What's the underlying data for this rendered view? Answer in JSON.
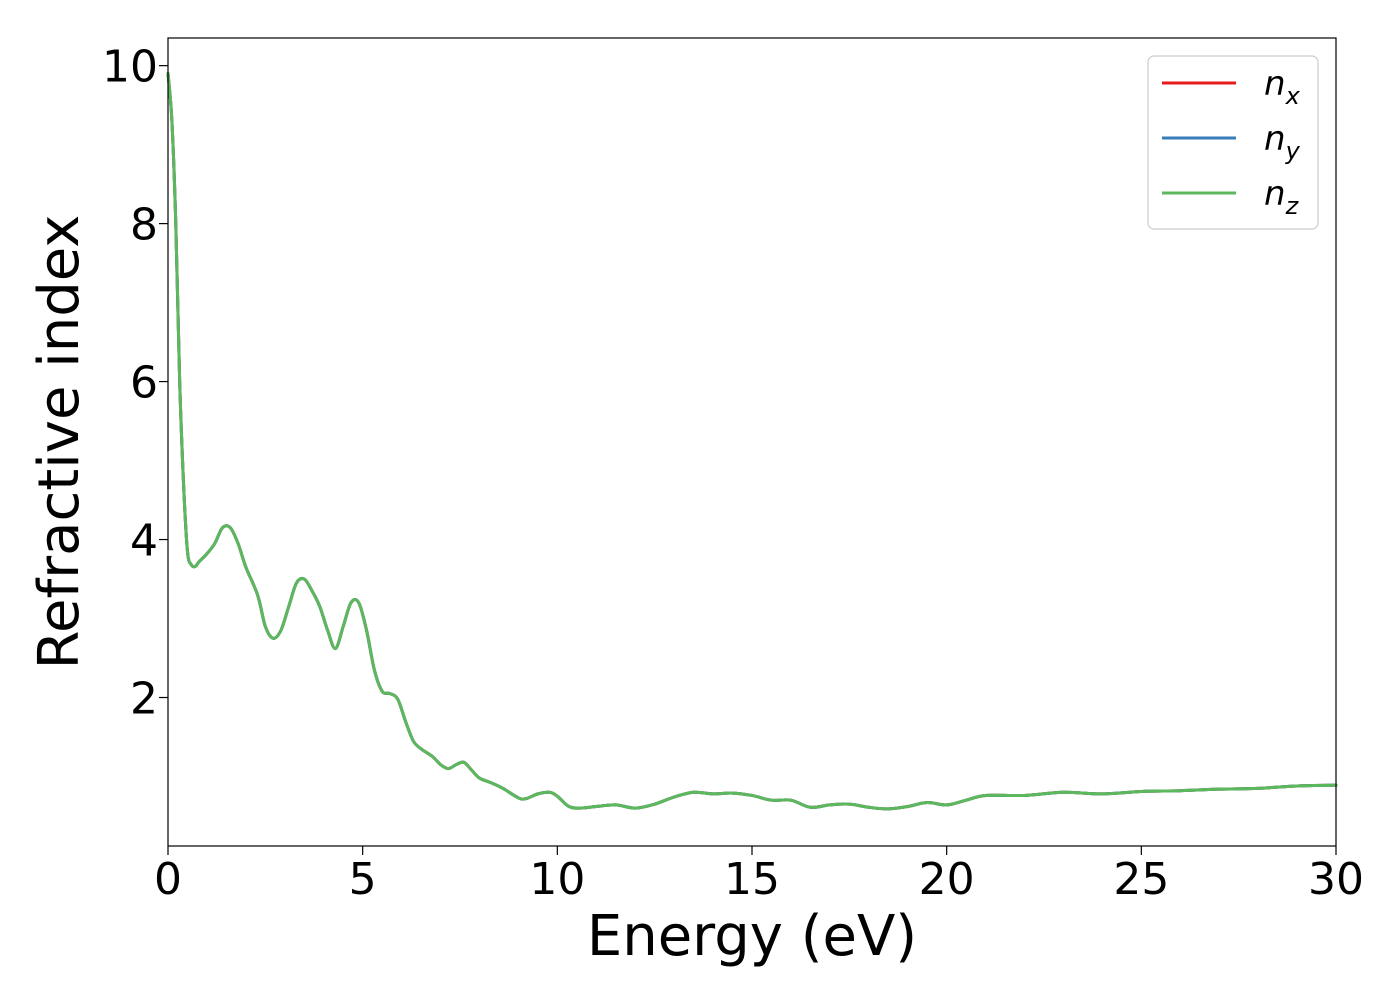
{
  "chart_data": {
    "type": "line",
    "title": "",
    "xlabel": "Energy (eV)",
    "ylabel": "Refractive index",
    "xlim": [
      0,
      30
    ],
    "ylim": [
      0.12,
      10.35
    ],
    "xticks": [
      0,
      5,
      10,
      15,
      20,
      25,
      30
    ],
    "xtick_labels": [
      "0",
      "5",
      "10",
      "15",
      "20",
      "25",
      "30"
    ],
    "yticks": [
      2,
      4,
      6,
      8,
      10
    ],
    "ytick_labels": [
      "2",
      "4",
      "6",
      "8",
      "10"
    ],
    "grid": false,
    "legend_position": "top-right",
    "x": [
      0,
      0.1,
      0.2,
      0.3,
      0.4,
      0.5,
      0.6,
      0.7,
      0.8,
      1.0,
      1.2,
      1.4,
      1.6,
      1.8,
      2.0,
      2.3,
      2.5,
      2.7,
      2.9,
      3.1,
      3.3,
      3.5,
      3.7,
      3.9,
      4.1,
      4.3,
      4.5,
      4.7,
      4.9,
      5.1,
      5.3,
      5.5,
      5.7,
      5.9,
      6.1,
      6.3,
      6.5,
      6.8,
      7.0,
      7.2,
      7.4,
      7.6,
      7.8,
      8.0,
      8.3,
      8.6,
      9.0,
      9.2,
      9.5,
      9.8,
      10.0,
      10.3,
      10.6,
      11.0,
      11.5,
      12.0,
      12.5,
      13.0,
      13.5,
      14.0,
      14.5,
      15.0,
      15.5,
      16.0,
      16.5,
      17.0,
      17.5,
      18.0,
      18.5,
      19.0,
      19.5,
      20.0,
      20.5,
      21.0,
      22.0,
      23.0,
      24.0,
      25.0,
      26.0,
      27.0,
      28.0,
      29.0,
      30.0
    ],
    "series": [
      {
        "name": "n_x",
        "label_base": "n",
        "label_sub": "x",
        "color": "#e41a1c",
        "y": [
          9.9,
          9.3,
          8.0,
          6.0,
          4.7,
          3.85,
          3.68,
          3.66,
          3.72,
          3.82,
          3.95,
          4.15,
          4.15,
          3.95,
          3.65,
          3.3,
          2.9,
          2.75,
          2.85,
          3.15,
          3.45,
          3.5,
          3.35,
          3.15,
          2.85,
          2.62,
          2.9,
          3.2,
          3.2,
          2.85,
          2.35,
          2.08,
          2.05,
          1.98,
          1.7,
          1.45,
          1.35,
          1.25,
          1.15,
          1.1,
          1.15,
          1.18,
          1.08,
          0.98,
          0.92,
          0.85,
          0.73,
          0.72,
          0.78,
          0.8,
          0.75,
          0.62,
          0.6,
          0.62,
          0.64,
          0.6,
          0.65,
          0.74,
          0.8,
          0.78,
          0.79,
          0.76,
          0.7,
          0.7,
          0.61,
          0.64,
          0.65,
          0.61,
          0.59,
          0.62,
          0.67,
          0.64,
          0.7,
          0.76,
          0.76,
          0.8,
          0.78,
          0.81,
          0.82,
          0.84,
          0.85,
          0.88,
          0.89
        ]
      },
      {
        "name": "n_y",
        "label_base": "n",
        "label_sub": "y",
        "color": "#377eb8",
        "y": [
          9.9,
          9.3,
          8.0,
          6.0,
          4.7,
          3.85,
          3.68,
          3.66,
          3.72,
          3.82,
          3.95,
          4.15,
          4.15,
          3.95,
          3.65,
          3.3,
          2.9,
          2.75,
          2.85,
          3.15,
          3.45,
          3.5,
          3.35,
          3.15,
          2.85,
          2.62,
          2.9,
          3.2,
          3.2,
          2.85,
          2.35,
          2.08,
          2.05,
          1.98,
          1.7,
          1.45,
          1.35,
          1.25,
          1.15,
          1.1,
          1.15,
          1.18,
          1.08,
          0.98,
          0.92,
          0.85,
          0.73,
          0.72,
          0.78,
          0.8,
          0.75,
          0.62,
          0.6,
          0.62,
          0.64,
          0.6,
          0.65,
          0.74,
          0.8,
          0.78,
          0.79,
          0.76,
          0.7,
          0.7,
          0.61,
          0.64,
          0.65,
          0.61,
          0.59,
          0.62,
          0.67,
          0.64,
          0.7,
          0.76,
          0.76,
          0.8,
          0.78,
          0.81,
          0.82,
          0.84,
          0.85,
          0.88,
          0.89
        ]
      },
      {
        "name": "n_z",
        "label_base": "n",
        "label_sub": "z",
        "color": "#5cb85c",
        "y": [
          9.9,
          9.3,
          8.0,
          6.0,
          4.7,
          3.85,
          3.68,
          3.66,
          3.72,
          3.82,
          3.95,
          4.15,
          4.15,
          3.95,
          3.65,
          3.3,
          2.9,
          2.75,
          2.85,
          3.15,
          3.45,
          3.5,
          3.35,
          3.15,
          2.85,
          2.62,
          2.9,
          3.2,
          3.2,
          2.85,
          2.35,
          2.08,
          2.05,
          1.98,
          1.7,
          1.45,
          1.35,
          1.25,
          1.15,
          1.1,
          1.15,
          1.18,
          1.08,
          0.98,
          0.92,
          0.85,
          0.73,
          0.72,
          0.78,
          0.8,
          0.75,
          0.62,
          0.6,
          0.62,
          0.64,
          0.6,
          0.65,
          0.74,
          0.8,
          0.78,
          0.79,
          0.76,
          0.7,
          0.7,
          0.61,
          0.64,
          0.65,
          0.61,
          0.59,
          0.62,
          0.67,
          0.64,
          0.7,
          0.76,
          0.76,
          0.8,
          0.78,
          0.81,
          0.82,
          0.84,
          0.85,
          0.88,
          0.89
        ]
      }
    ]
  }
}
